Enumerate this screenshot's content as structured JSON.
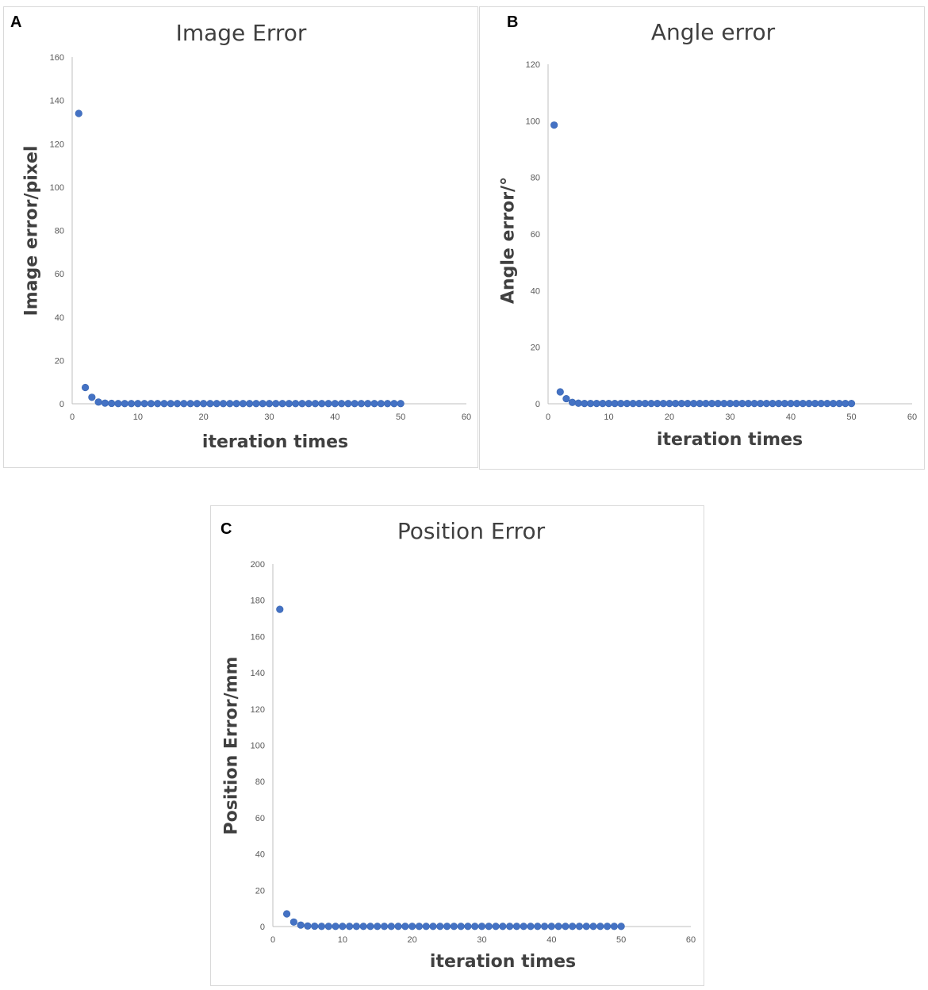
{
  "chart_data": [
    {
      "panel_label": "A",
      "type": "scatter",
      "title": "Image Error",
      "xlabel": "iteration times",
      "ylabel": "Image error/pixel",
      "xlim": [
        0,
        60
      ],
      "ylim": [
        0,
        160
      ],
      "xticks": [
        0,
        10,
        20,
        30,
        40,
        50,
        60
      ],
      "yticks": [
        0,
        20,
        40,
        60,
        80,
        100,
        120,
        140,
        160
      ],
      "grid": false,
      "marker_color": "#4472C4",
      "series": [
        {
          "x": [
            1,
            2,
            3,
            4,
            5,
            6,
            7,
            8,
            9,
            10,
            11,
            12,
            13,
            14,
            15,
            16,
            17,
            18,
            19,
            20,
            21,
            22,
            23,
            24,
            25,
            26,
            27,
            28,
            29,
            30,
            31,
            32,
            33,
            34,
            35,
            36,
            37,
            38,
            39,
            40,
            41,
            42,
            43,
            44,
            45,
            46,
            47,
            48,
            49,
            50
          ],
          "values": [
            134,
            7.5,
            3,
            0.8,
            0.3,
            0.2,
            0.1,
            0.1,
            0.1,
            0.1,
            0.1,
            0.1,
            0.1,
            0.1,
            0.1,
            0.1,
            0.1,
            0.1,
            0.1,
            0.1,
            0.1,
            0.1,
            0.1,
            0.1,
            0.1,
            0.1,
            0.1,
            0.1,
            0.1,
            0.1,
            0.1,
            0.1,
            0.1,
            0.1,
            0.1,
            0.1,
            0.1,
            0.1,
            0.1,
            0.1,
            0.1,
            0.1,
            0.1,
            0.1,
            0.1,
            0.1,
            0.1,
            0.1,
            0.1,
            0.1
          ]
        }
      ]
    },
    {
      "panel_label": "B",
      "type": "scatter",
      "title": "Angle error",
      "xlabel": "iteration times",
      "ylabel": "Angle error/°",
      "xlim": [
        0,
        60
      ],
      "ylim": [
        0,
        120
      ],
      "xticks": [
        0,
        10,
        20,
        30,
        40,
        50,
        60
      ],
      "yticks": [
        0,
        20,
        40,
        60,
        80,
        100,
        120
      ],
      "grid": false,
      "marker_color": "#4472C4",
      "series": [
        {
          "x": [
            1,
            2,
            3,
            4,
            5,
            6,
            7,
            8,
            9,
            10,
            11,
            12,
            13,
            14,
            15,
            16,
            17,
            18,
            19,
            20,
            21,
            22,
            23,
            24,
            25,
            26,
            27,
            28,
            29,
            30,
            31,
            32,
            33,
            34,
            35,
            36,
            37,
            38,
            39,
            40,
            41,
            42,
            43,
            44,
            45,
            46,
            47,
            48,
            49,
            50
          ],
          "values": [
            98.5,
            4.2,
            1.8,
            0.5,
            0.2,
            0.1,
            0.1,
            0.1,
            0.1,
            0.1,
            0.1,
            0.1,
            0.1,
            0.1,
            0.1,
            0.1,
            0.1,
            0.1,
            0.1,
            0.1,
            0.1,
            0.1,
            0.1,
            0.1,
            0.1,
            0.1,
            0.1,
            0.1,
            0.1,
            0.1,
            0.1,
            0.1,
            0.1,
            0.1,
            0.1,
            0.1,
            0.1,
            0.1,
            0.1,
            0.1,
            0.1,
            0.1,
            0.1,
            0.1,
            0.1,
            0.1,
            0.1,
            0.1,
            0.1,
            0.1
          ]
        }
      ]
    },
    {
      "panel_label": "C",
      "type": "scatter",
      "title": "Position Error",
      "xlabel": "iteration times",
      "ylabel": "Position Error/mm",
      "xlim": [
        0,
        60
      ],
      "ylim": [
        0,
        200
      ],
      "xticks": [
        0,
        10,
        20,
        30,
        40,
        50,
        60
      ],
      "yticks": [
        0,
        20,
        40,
        60,
        80,
        100,
        120,
        140,
        160,
        180,
        200
      ],
      "grid": false,
      "marker_color": "#4472C4",
      "series": [
        {
          "x": [
            1,
            2,
            3,
            4,
            5,
            6,
            7,
            8,
            9,
            10,
            11,
            12,
            13,
            14,
            15,
            16,
            17,
            18,
            19,
            20,
            21,
            22,
            23,
            24,
            25,
            26,
            27,
            28,
            29,
            30,
            31,
            32,
            33,
            34,
            35,
            36,
            37,
            38,
            39,
            40,
            41,
            42,
            43,
            44,
            45,
            46,
            47,
            48,
            49,
            50
          ],
          "values": [
            175,
            7,
            2.5,
            0.8,
            0.3,
            0.2,
            0.1,
            0.1,
            0.1,
            0.1,
            0.1,
            0.1,
            0.1,
            0.1,
            0.1,
            0.1,
            0.1,
            0.1,
            0.1,
            0.1,
            0.1,
            0.1,
            0.1,
            0.1,
            0.1,
            0.1,
            0.1,
            0.1,
            0.1,
            0.1,
            0.1,
            0.1,
            0.1,
            0.1,
            0.1,
            0.1,
            0.1,
            0.1,
            0.1,
            0.1,
            0.1,
            0.1,
            0.1,
            0.1,
            0.1,
            0.1,
            0.1,
            0.1,
            0.1,
            0.1
          ]
        }
      ]
    }
  ]
}
